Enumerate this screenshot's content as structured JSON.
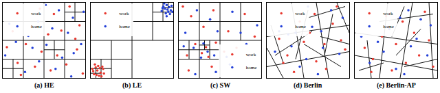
{
  "chart_data": [
    {
      "type": "scatter",
      "title": "(a) HE",
      "xlim": [
        0,
        1
      ],
      "ylim": [
        0,
        1
      ],
      "tick_labels": false,
      "legend": "upper left",
      "lines": [
        [
          0.5,
          0,
          0.5,
          1
        ],
        [
          0,
          0.5,
          1,
          0.5
        ],
        [
          0.25,
          0.5,
          0.25,
          1
        ],
        [
          0,
          0.75,
          0.5,
          0.75
        ],
        [
          0.75,
          0.5,
          0.75,
          1
        ],
        [
          0.5,
          0.75,
          1,
          0.75
        ],
        [
          0.25,
          0,
          0.25,
          0.5
        ],
        [
          0,
          0.25,
          0.5,
          0.25
        ],
        [
          0.75,
          0,
          0.75,
          0.5
        ],
        [
          0.5,
          0.25,
          1,
          0.25
        ],
        [
          0.875,
          0.75,
          0.875,
          1
        ],
        [
          0.75,
          0.875,
          1,
          0.875
        ],
        [
          0.125,
          0,
          0.125,
          0.25
        ],
        [
          0,
          0.125,
          0.25,
          0.125
        ],
        [
          0.625,
          0.25,
          0.625,
          0.5
        ],
        [
          0.5,
          0.375,
          0.75,
          0.375
        ]
      ],
      "series": [
        {
          "name": "work",
          "color": "#e8382f",
          "x": [
            0.45,
            0.62,
            0.81,
            0.93,
            0.12,
            0.35,
            0.55,
            0.71,
            0.88,
            0.05,
            0.28,
            0.47,
            0.66,
            0.9,
            0.18,
            0.39,
            0.58,
            0.77,
            0.97,
            0.22
          ],
          "values": [
            0.92,
            0.85,
            0.95,
            0.7,
            0.62,
            0.68,
            0.58,
            0.63,
            0.52,
            0.41,
            0.45,
            0.35,
            0.3,
            0.38,
            0.2,
            0.15,
            0.1,
            0.18,
            0.06,
            0.04
          ]
        },
        {
          "name": "home",
          "color": "#2340d8",
          "x": [
            0.52,
            0.68,
            0.85,
            0.98,
            0.08,
            0.31,
            0.43,
            0.6,
            0.79,
            0.95,
            0.16,
            0.36,
            0.53,
            0.72,
            0.86,
            0.03,
            0.27,
            0.44,
            0.64,
            0.83
          ],
          "values": [
            0.97,
            0.9,
            0.8,
            0.88,
            0.72,
            0.56,
            0.75,
            0.66,
            0.6,
            0.45,
            0.48,
            0.4,
            0.44,
            0.27,
            0.33,
            0.3,
            0.08,
            0.22,
            0.12,
            0.02
          ]
        }
      ]
    },
    {
      "type": "scatter",
      "title": "(b) LE",
      "xlim": [
        0,
        1
      ],
      "ylim": [
        0,
        1
      ],
      "tick_labels": false,
      "legend": "upper left",
      "lines": [
        [
          0.5,
          0,
          0.5,
          1
        ],
        [
          0,
          0.5,
          1,
          0.5
        ],
        [
          0.75,
          0.5,
          0.75,
          1
        ],
        [
          0.5,
          0.75,
          1,
          0.75
        ],
        [
          0.875,
          0.75,
          0.875,
          1
        ],
        [
          0.75,
          0.875,
          1,
          0.875
        ],
        [
          0.25,
          0,
          0.25,
          0.5
        ],
        [
          0,
          0.25,
          0.5,
          0.25
        ],
        [
          0.125,
          0,
          0.125,
          0.25
        ],
        [
          0,
          0.125,
          0.25,
          0.125
        ],
        [
          0.0625,
          0,
          0.0625,
          0.125
        ],
        [
          0,
          0.0625,
          0.125,
          0.0625
        ],
        [
          0.9375,
          0.875,
          0.9375,
          1
        ],
        [
          0.875,
          0.9375,
          1,
          0.9375
        ]
      ],
      "series": [
        {
          "name": "work",
          "color": "#e8382f",
          "x": [
            0.04,
            0.08,
            0.12,
            0.06,
            0.1,
            0.15,
            0.03,
            0.09,
            0.13,
            0.07,
            0.11,
            0.05,
            0.16,
            0.02,
            0.14
          ],
          "values": [
            0.05,
            0.1,
            0.07,
            0.14,
            0.03,
            0.12,
            0.09,
            0.16,
            0.02,
            0.04,
            0.13,
            0.18,
            0.06,
            0.12,
            0.15
          ]
        },
        {
          "name": "home",
          "color": "#2340d8",
          "x": [
            0.9,
            0.94,
            0.88,
            0.97,
            0.92,
            0.86,
            0.95,
            0.91,
            0.98,
            0.89,
            0.93,
            0.96,
            0.87,
            0.92,
            0.99
          ],
          "values": [
            0.92,
            0.88,
            0.95,
            0.9,
            0.97,
            0.89,
            0.94,
            0.86,
            0.96,
            0.99,
            0.91,
            0.85,
            0.93,
            0.82,
            0.88
          ]
        }
      ]
    },
    {
      "type": "scatter",
      "title": "(c) SW",
      "xlim": [
        0,
        1
      ],
      "ylim": [
        0,
        1
      ],
      "tick_labels": false,
      "legend": "lower right",
      "lines": [
        [
          0.5,
          0,
          0.5,
          1
        ],
        [
          0,
          0.5,
          1,
          0.5
        ],
        [
          0.25,
          0,
          0.25,
          0.5
        ],
        [
          0,
          0.25,
          0.5,
          0.25
        ],
        [
          0.25,
          0.5,
          0.25,
          1
        ],
        [
          0,
          0.75,
          0.5,
          0.75
        ],
        [
          0.375,
          0.25,
          0.375,
          0.5
        ],
        [
          0.25,
          0.375,
          0.5,
          0.375
        ],
        [
          0.75,
          0.5,
          0.75,
          1
        ],
        [
          0.5,
          0.75,
          1,
          0.75
        ],
        [
          0.125,
          0.25,
          0.125,
          0.5
        ],
        [
          0,
          0.375,
          0.25,
          0.375
        ],
        [
          0.3125,
          0.375,
          0.3125,
          0.5
        ],
        [
          0.25,
          0.4375,
          0.375,
          0.4375
        ]
      ],
      "series": [
        {
          "name": "work",
          "color": "#e8382f",
          "x": [
            0.05,
            0.15,
            0.3,
            0.42,
            0.2,
            0.33,
            0.45,
            0.1,
            0.28,
            0.36,
            0.6,
            0.8,
            0.92,
            0.55,
            0.7,
            0.12,
            0.4,
            0.85
          ],
          "values": [
            0.95,
            0.82,
            0.68,
            0.9,
            0.45,
            0.41,
            0.47,
            0.3,
            0.33,
            0.28,
            0.62,
            0.85,
            0.55,
            0.35,
            0.4,
            0.1,
            0.15,
            0.3
          ]
        },
        {
          "name": "home",
          "color": "#2340d8",
          "x": [
            0.08,
            0.22,
            0.38,
            0.47,
            0.18,
            0.3,
            0.43,
            0.06,
            0.35,
            0.27,
            0.65,
            0.75,
            0.95,
            0.58,
            0.82,
            0.2,
            0.45,
            0.62
          ],
          "values": [
            0.6,
            0.9,
            0.78,
            0.62,
            0.4,
            0.46,
            0.3,
            0.42,
            0.35,
            0.27,
            0.88,
            0.6,
            0.7,
            0.28,
            0.45,
            0.05,
            0.08,
            0.18
          ]
        }
      ]
    },
    {
      "type": "scatter",
      "title": "(d) Berlin",
      "xlim": [
        0,
        1
      ],
      "ylim": [
        0,
        1
      ],
      "tick_labels": false,
      "legend": "upper left",
      "lines": [
        [
          0,
          0.15,
          1,
          0.35
        ],
        [
          0,
          0.55,
          1,
          0.7
        ],
        [
          0.3,
          1,
          0.45,
          0
        ],
        [
          0.6,
          1,
          0.75,
          0
        ],
        [
          0.2,
          0,
          0,
          0.4
        ],
        [
          0.85,
          1,
          1,
          0.6
        ],
        [
          0.45,
          0.45,
          0.9,
          0.15
        ],
        [
          0.1,
          0.3,
          0.55,
          0.62
        ],
        [
          0.5,
          0.8,
          0.95,
          0.95
        ],
        [
          0.05,
          0.7,
          0.2,
          0.2
        ],
        [
          0.65,
          0.55,
          1,
          0.45
        ],
        [
          0.35,
          0.25,
          0.5,
          0.9
        ],
        [
          0.8,
          0.85,
          0.7,
          0.3
        ]
      ],
      "series": [
        {
          "name": "work",
          "color": "#e8382f",
          "x": [
            0.4,
            0.52,
            0.7,
            0.85,
            0.25,
            0.6,
            0.9,
            0.15,
            0.45,
            0.72,
            0.33,
            0.8,
            0.58,
            0.95,
            0.2
          ],
          "values": [
            0.75,
            0.6,
            0.45,
            0.95,
            0.3,
            0.22,
            0.5,
            0.52,
            0.48,
            0.12,
            0.08,
            0.72,
            0.85,
            0.38,
            0.2
          ]
        },
        {
          "name": "home",
          "color": "#2340d8",
          "x": [
            0.35,
            0.48,
            0.66,
            0.88,
            0.3,
            0.55,
            0.78,
            0.1,
            0.4,
            0.68,
            0.26,
            0.92,
            0.62,
            0.5,
            0.15
          ],
          "values": [
            0.6,
            0.25,
            0.62,
            0.32,
            0.42,
            0.68,
            0.9,
            0.35,
            0.15,
            0.4,
            0.58,
            0.8,
            0.05,
            0.95,
            0.62
          ]
        }
      ]
    },
    {
      "type": "scatter",
      "title": "(e) Berlin-AP",
      "xlim": [
        0,
        1
      ],
      "ylim": [
        0,
        1
      ],
      "tick_labels": false,
      "legend": "upper left",
      "lines": [
        [
          0,
          0.3,
          1,
          0.1
        ],
        [
          0,
          0.6,
          1,
          0.45
        ],
        [
          0.4,
          1,
          0.3,
          0
        ],
        [
          0.7,
          1,
          0.55,
          0
        ],
        [
          0.9,
          1,
          0.95,
          0
        ],
        [
          0.15,
          0.5,
          0.2,
          0
        ],
        [
          0.3,
          0.75,
          0.95,
          0.85
        ],
        [
          0.5,
          0.3,
          0.8,
          0.65
        ],
        [
          0.05,
          0.1,
          0.35,
          0.2
        ],
        [
          0.6,
          0.15,
          1,
          0.25
        ],
        [
          0.45,
          0.55,
          0.6,
          0.95
        ]
      ],
      "series": [
        {
          "name": "work",
          "color": "#e8382f",
          "x": [
            0.38,
            0.5,
            0.72,
            0.9,
            0.22,
            0.62,
            0.85,
            0.12,
            0.45,
            0.33,
            0.78,
            0.58,
            0.95,
            0.2
          ],
          "values": [
            0.82,
            0.45,
            0.6,
            0.5,
            0.25,
            0.2,
            0.88,
            0.4,
            0.1,
            0.55,
            0.3,
            0.75,
            0.15,
            0.08
          ]
        },
        {
          "name": "home",
          "color": "#2340d8",
          "x": [
            0.42,
            0.55,
            0.68,
            0.92,
            0.28,
            0.6,
            0.8,
            0.08,
            0.35,
            0.5,
            0.75,
            0.65,
            0.88,
            0.18
          ],
          "values": [
            0.65,
            0.8,
            0.42,
            0.7,
            0.48,
            0.05,
            0.78,
            0.55,
            0.35,
            0.12,
            0.52,
            0.9,
            0.3,
            0.2
          ]
        }
      ]
    }
  ]
}
